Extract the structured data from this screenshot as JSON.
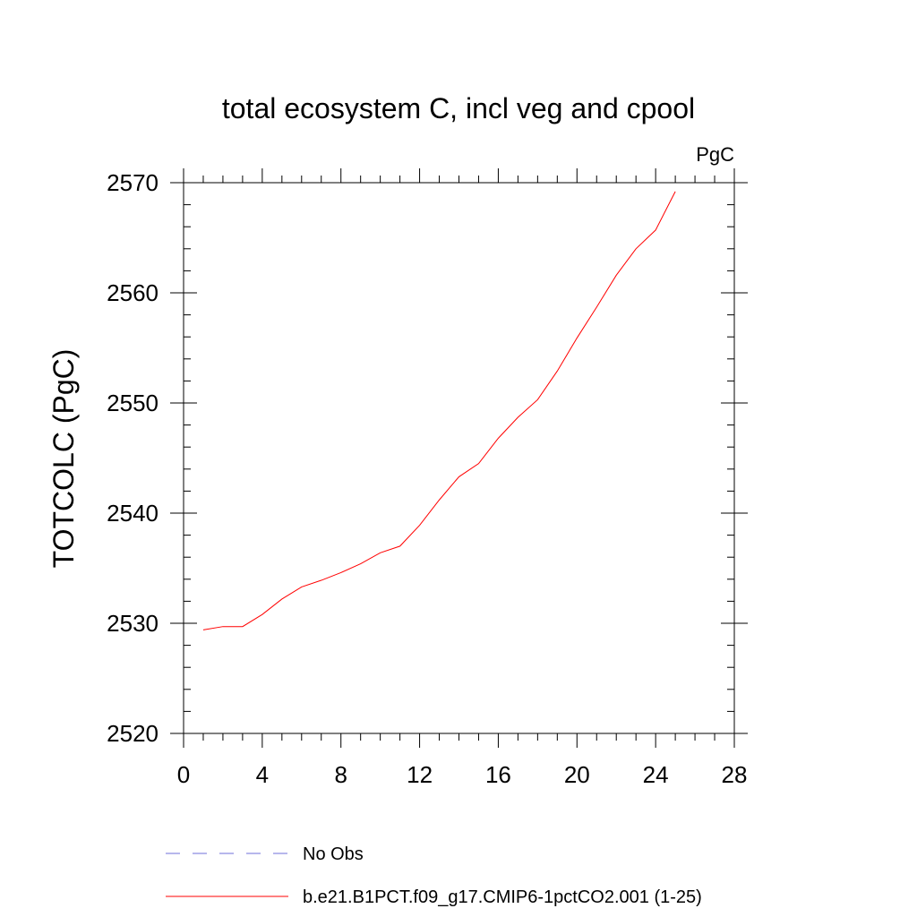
{
  "chart_data": {
    "type": "line",
    "title": "total ecosystem C, incl veg and cpool",
    "units_label": "PgC",
    "xlabel": "",
    "ylabel": "TOTCOLC  (PgC)",
    "xlim": [
      0,
      28
    ],
    "ylim": [
      2520,
      2570
    ],
    "x_ticks": [
      0,
      4,
      8,
      12,
      16,
      20,
      24,
      28
    ],
    "y_ticks": [
      2520,
      2530,
      2540,
      2550,
      2560,
      2570
    ],
    "x_minor_step": 1,
    "y_minor_step": 2,
    "grid": false,
    "legend_position": "bottom",
    "series": [
      {
        "name": "No Obs",
        "style": "dashed",
        "color": "#6f6fd8",
        "x": [],
        "y": []
      },
      {
        "name": "b.e21.B1PCT.f09_g17.CMIP6-1pctCO2.001 (1-25)",
        "style": "solid",
        "color": "#ff0000",
        "x": [
          1,
          2,
          3,
          4,
          5,
          6,
          7,
          8,
          9,
          10,
          11,
          12,
          13,
          14,
          15,
          16,
          17,
          18,
          19,
          20,
          21,
          22,
          23,
          24,
          25
        ],
        "y": [
          2529.4,
          2529.7,
          2529.7,
          2530.8,
          2532.2,
          2533.3,
          2533.9,
          2534.6,
          2535.4,
          2536.4,
          2537.0,
          2538.9,
          2541.2,
          2543.3,
          2544.5,
          2546.8,
          2548.7,
          2550.3,
          2552.9,
          2555.9,
          2558.7,
          2561.6,
          2564.0,
          2565.7,
          2569.2
        ]
      }
    ]
  }
}
